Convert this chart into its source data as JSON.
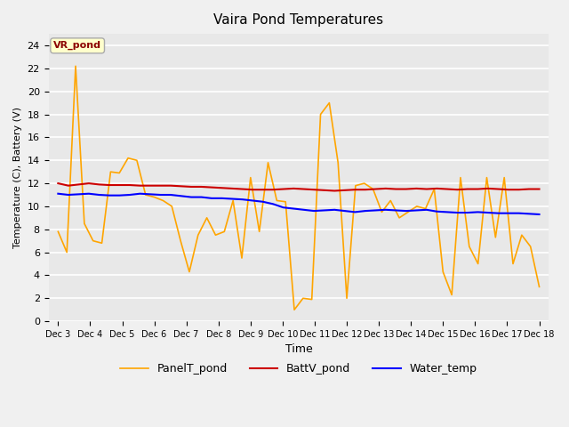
{
  "title": "Vaira Pond Temperatures",
  "xlabel": "Time",
  "ylabel": "Temperature (C), Battery (V)",
  "ylim": [
    0,
    25
  ],
  "yticks": [
    0,
    2,
    4,
    6,
    8,
    10,
    12,
    14,
    16,
    18,
    20,
    22,
    24
  ],
  "xtick_labels": [
    "Dec 3",
    "Dec 4",
    "Dec 5",
    "Dec 6",
    "Dec 7",
    "Dec 8",
    "Dec 9",
    "Dec 10",
    "Dec 11",
    "Dec 12",
    "Dec 13",
    "Dec 14",
    "Dec 15",
    "Dec 16",
    "Dec 17",
    "Dec 18"
  ],
  "annotation_text": "VR_pond",
  "annotation_color": "#8B0000",
  "annotation_bg": "#FFFFCC",
  "fig_bg": "#F0F0F0",
  "plot_bg": "#E8E8E8",
  "line_blue": "#0000FF",
  "line_orange": "#FFA500",
  "line_red": "#CC0000",
  "legend_labels": [
    "Water_temp",
    "PanelT_pond",
    "BattV_pond"
  ],
  "water_temp": [
    11.1,
    11.0,
    11.05,
    11.1,
    11.0,
    10.95,
    10.95,
    11.0,
    11.1,
    11.05,
    11.0,
    11.0,
    10.9,
    10.8,
    10.8,
    10.7,
    10.7,
    10.65,
    10.6,
    10.5,
    10.4,
    10.2,
    9.9,
    9.8,
    9.7,
    9.6,
    9.65,
    9.7,
    9.6,
    9.5,
    9.6,
    9.65,
    9.7,
    9.65,
    9.6,
    9.65,
    9.7,
    9.55,
    9.5,
    9.45,
    9.45,
    9.5,
    9.45,
    9.4,
    9.4,
    9.4,
    9.35,
    9.3
  ],
  "panel_temp": [
    7.8,
    6.0,
    22.2,
    8.5,
    7.0,
    6.8,
    13.0,
    12.9,
    14.2,
    14.0,
    11.0,
    10.8,
    10.5,
    10.0,
    7.0,
    4.3,
    7.5,
    9.0,
    7.5,
    7.8,
    10.5,
    5.5,
    12.5,
    7.8,
    13.8,
    10.5,
    10.4,
    1.0,
    2.0,
    1.9,
    18.0,
    19.0,
    13.8,
    2.0,
    11.8,
    12.0,
    11.5,
    9.5,
    10.5,
    9.0,
    9.5,
    10.0,
    9.8,
    11.5,
    4.3,
    2.3,
    12.5,
    6.5,
    5.0,
    12.5,
    7.3,
    12.5,
    5.0,
    7.5,
    6.5,
    3.0
  ],
  "batt_v": [
    12.0,
    11.8,
    11.9,
    12.0,
    11.9,
    11.85,
    11.85,
    11.85,
    11.8,
    11.8,
    11.8,
    11.8,
    11.75,
    11.7,
    11.7,
    11.65,
    11.6,
    11.55,
    11.5,
    11.45,
    11.45,
    11.45,
    11.5,
    11.55,
    11.5,
    11.45,
    11.4,
    11.35,
    11.4,
    11.45,
    11.45,
    11.5,
    11.55,
    11.5,
    11.5,
    11.55,
    11.5,
    11.55,
    11.5,
    11.45,
    11.5,
    11.5,
    11.55,
    11.5,
    11.45,
    11.45,
    11.5,
    11.5
  ]
}
